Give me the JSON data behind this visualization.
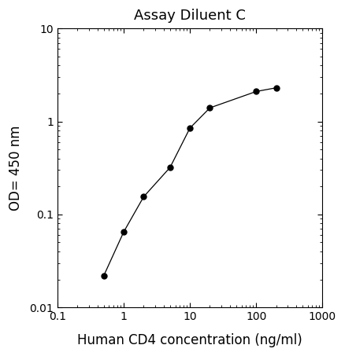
{
  "title": "Assay Diluent C",
  "xlabel": "Human CD4 concentration (ng/ml)",
  "ylabel": "OD= 450 nm",
  "x_values": [
    0.5,
    1.0,
    2.0,
    5.0,
    10.0,
    20.0,
    100.0,
    200.0
  ],
  "y_values": [
    0.022,
    0.065,
    0.155,
    0.32,
    0.85,
    1.4,
    2.1,
    2.3
  ],
  "xlim": [
    0.1,
    1000
  ],
  "ylim": [
    0.01,
    10
  ],
  "line_color": "#000000",
  "marker_color": "#000000",
  "marker_style": "o",
  "marker_size": 5,
  "line_width": 0.9,
  "line_style": "-",
  "title_fontsize": 13,
  "label_fontsize": 12,
  "tick_fontsize": 10,
  "background_color": "#ffffff",
  "x_tick_labels": [
    "0.1",
    "1",
    "10",
    "100",
    "1000"
  ],
  "x_tick_values": [
    0.1,
    1,
    10,
    100,
    1000
  ],
  "y_tick_labels": [
    "0.01",
    "0.1",
    "1",
    "10"
  ],
  "y_tick_values": [
    0.01,
    0.1,
    1,
    10
  ]
}
